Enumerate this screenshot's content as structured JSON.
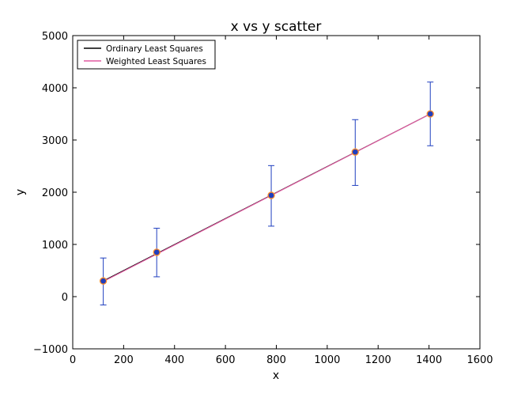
{
  "chart_data": {
    "type": "scatter",
    "title": "x vs y scatter",
    "xlabel": "x",
    "ylabel": "y",
    "xlim": [
      0,
      1600
    ],
    "ylim": [
      -1000,
      5000
    ],
    "xticks": [
      0,
      200,
      400,
      600,
      800,
      1000,
      1200,
      1400,
      1600
    ],
    "xtick_labels": [
      "0",
      "200",
      "400",
      "600",
      "800",
      "1000",
      "1200",
      "1400",
      "1600"
    ],
    "yticks": [
      -1000,
      0,
      1000,
      2000,
      3000,
      4000,
      5000
    ],
    "ytick_labels": [
      "−1000",
      "0",
      "1000",
      "2000",
      "3000",
      "4000",
      "5000"
    ],
    "grid": false,
    "legend_position": "top-left",
    "points": {
      "x": [
        120,
        330,
        780,
        1110,
        1405
      ],
      "y": [
        300,
        850,
        1940,
        2770,
        3500
      ],
      "yerr_low": [
        -160,
        380,
        1350,
        2130,
        2890
      ],
      "yerr_high": [
        740,
        1310,
        2510,
        3390,
        4110
      ],
      "marker_color": "#1f3fbf",
      "marker_edge_color": "#ff8c2a",
      "errorbar_color": "#1f3fbf"
    },
    "series": [
      {
        "name": "Ordinary Least Squares",
        "x": [
          120,
          1405
        ],
        "y": [
          300,
          3500
        ],
        "color": "#000000"
      },
      {
        "name": "Weighted Least Squares",
        "x": [
          120,
          1405
        ],
        "y": [
          290,
          3500
        ],
        "color": "#e05aa0"
      }
    ]
  }
}
